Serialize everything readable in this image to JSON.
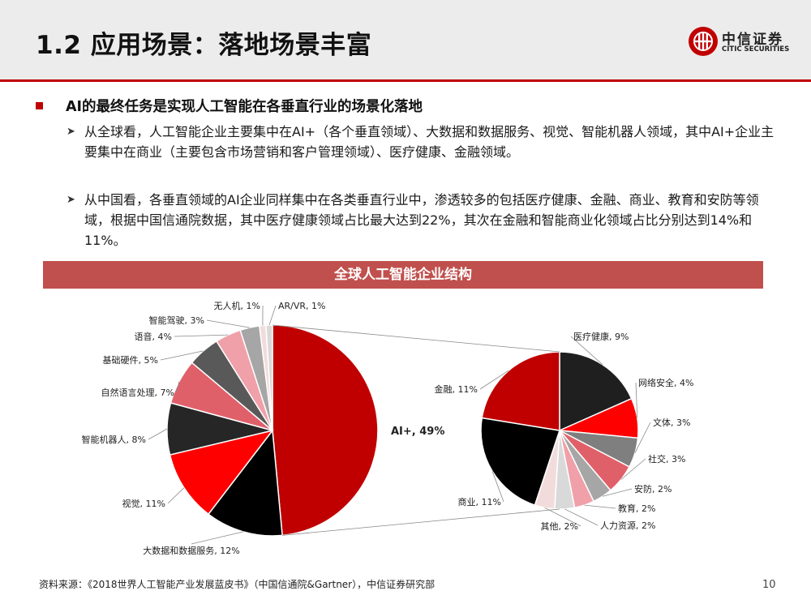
{
  "slide": {
    "title": "1.2 应用场景：落地场景丰富",
    "logo": {
      "name": "中信证券",
      "en": "CITIC SECURITIES"
    },
    "bullet": "AI的最终任务是实现人工智能在各垂直行业的场景化落地",
    "sub_points": [
      "从全球看，人工智能企业主要集中在AI+（各个垂直领域）、大数据和数据服务、视觉、智能机器人领域，其中AI+企业主要集中在商业（主要包含市场营销和客户管理领域）、医疗健康、金融领域。",
      "从中国看，各垂直领域的AI企业同样集中在各类垂直行业中，渗透较多的包括医疗健康、金融、商业、教育和安防等领域，根据中国信通院数据，其中医疗健康领域占比最大达到22%，其次在金融和智能商业化领域占比分别达到14%和11%。"
    ],
    "source": "资料来源：《2018世界人工智能产业发展蓝皮书》（中国信通院&Gartner），中信证券研究部",
    "page_number": "10"
  },
  "chart_data": {
    "type": "pie",
    "title": "全球人工智能企业结构",
    "main_pie": {
      "slices": [
        {
          "label": "AI+, 49%",
          "value": 49,
          "color": "#c00000"
        },
        {
          "label": "大数据和数据服务, 12%",
          "value": 12,
          "color": "#000000"
        },
        {
          "label": "视觉, 11%",
          "value": 11,
          "color": "#ff0000"
        },
        {
          "label": "智能机器人, 8%",
          "value": 8,
          "color": "#262626"
        },
        {
          "label": "自然语言处理, 7%",
          "value": 7,
          "color": "#e0606a"
        },
        {
          "label": "基础硬件, 5%",
          "value": 5,
          "color": "#595959"
        },
        {
          "label": "语音, 4%",
          "value": 4,
          "color": "#f0a0a8"
        },
        {
          "label": "智能驾驶, 3%",
          "value": 3,
          "color": "#a6a6a6"
        },
        {
          "label": "无人机, 1%",
          "value": 1,
          "color": "#f2dcdb"
        },
        {
          "label": "AR/VR, 1%",
          "value": 1,
          "color": "#d9d9d9"
        }
      ]
    },
    "breakout_pie": {
      "parent": "AI+, 49%",
      "slices": [
        {
          "label": "医疗健康, 9%",
          "value": 9,
          "color": "#1f1f1f"
        },
        {
          "label": "网络安全, 4%",
          "value": 4,
          "color": "#ff0000"
        },
        {
          "label": "文体, 3%",
          "value": 3,
          "color": "#7f7f7f"
        },
        {
          "label": "社交, 3%",
          "value": 3,
          "color": "#e0606a"
        },
        {
          "label": "安防, 2%",
          "value": 2,
          "color": "#a6a6a6"
        },
        {
          "label": "教育, 2%",
          "value": 2,
          "color": "#f0a0a8"
        },
        {
          "label": "人力资源, 2%",
          "value": 2,
          "color": "#d9d9d9"
        },
        {
          "label": "其他, 2%",
          "value": 2,
          "color": "#f2dcdb"
        },
        {
          "label": "商业, 11%",
          "value": 11,
          "color": "#000000"
        },
        {
          "label": "金融, 11%",
          "value": 11,
          "color": "#c00000"
        }
      ]
    }
  }
}
